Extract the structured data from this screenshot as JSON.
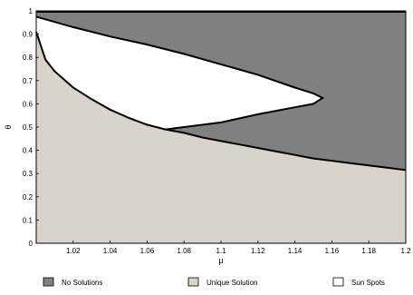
{
  "chart_data": {
    "type": "area",
    "xlabel": "μ",
    "ylabel": "θ",
    "xlim": [
      1.0,
      1.2
    ],
    "ylim": [
      0,
      1
    ],
    "x_ticks": [
      "1.02",
      "1.04",
      "1.06",
      "1.08",
      "1.1",
      "1.12",
      "1.14",
      "1.16",
      "1.18",
      "1.2"
    ],
    "y_ticks": [
      "0",
      "0.1",
      "0.2",
      "0.3",
      "0.4",
      "0.5",
      "0.6",
      "0.7",
      "0.8",
      "0.9",
      "1"
    ],
    "grid": false,
    "legend_position": "bottom",
    "series": [
      {
        "name": "No Solutions",
        "color": "#808080"
      },
      {
        "name": "Unique Solution",
        "color": "#d8d4cc"
      },
      {
        "name": "Sun Spots",
        "color": "#ffffff"
      }
    ],
    "boundaries": {
      "unique_upper": {
        "x": [
          1.0,
          1.005,
          1.01,
          1.02,
          1.03,
          1.04,
          1.05,
          1.06,
          1.07,
          1.08,
          1.09,
          1.1,
          1.11,
          1.12,
          1.13,
          1.14,
          1.15,
          1.16,
          1.17,
          1.18,
          1.19,
          1.2
        ],
        "y": [
          0.91,
          0.79,
          0.74,
          0.67,
          0.62,
          0.575,
          0.54,
          0.51,
          0.49,
          0.475,
          0.455,
          0.44,
          0.425,
          0.41,
          0.395,
          0.38,
          0.365,
          0.355,
          0.345,
          0.335,
          0.325,
          0.315
        ]
      },
      "sunspot_upper": {
        "x": [
          1.0,
          1.02,
          1.04,
          1.06,
          1.08,
          1.1,
          1.12,
          1.14,
          1.15,
          1.155
        ],
        "y": [
          0.975,
          0.93,
          0.89,
          0.855,
          0.815,
          0.77,
          0.725,
          0.67,
          0.645,
          0.625
        ]
      },
      "sunspot_lower": {
        "x": [
          1.155,
          1.15,
          1.14,
          1.12,
          1.1,
          1.08,
          1.07
        ],
        "y": [
          0.625,
          0.6,
          0.585,
          0.555,
          0.52,
          0.5,
          0.49
        ]
      }
    }
  }
}
